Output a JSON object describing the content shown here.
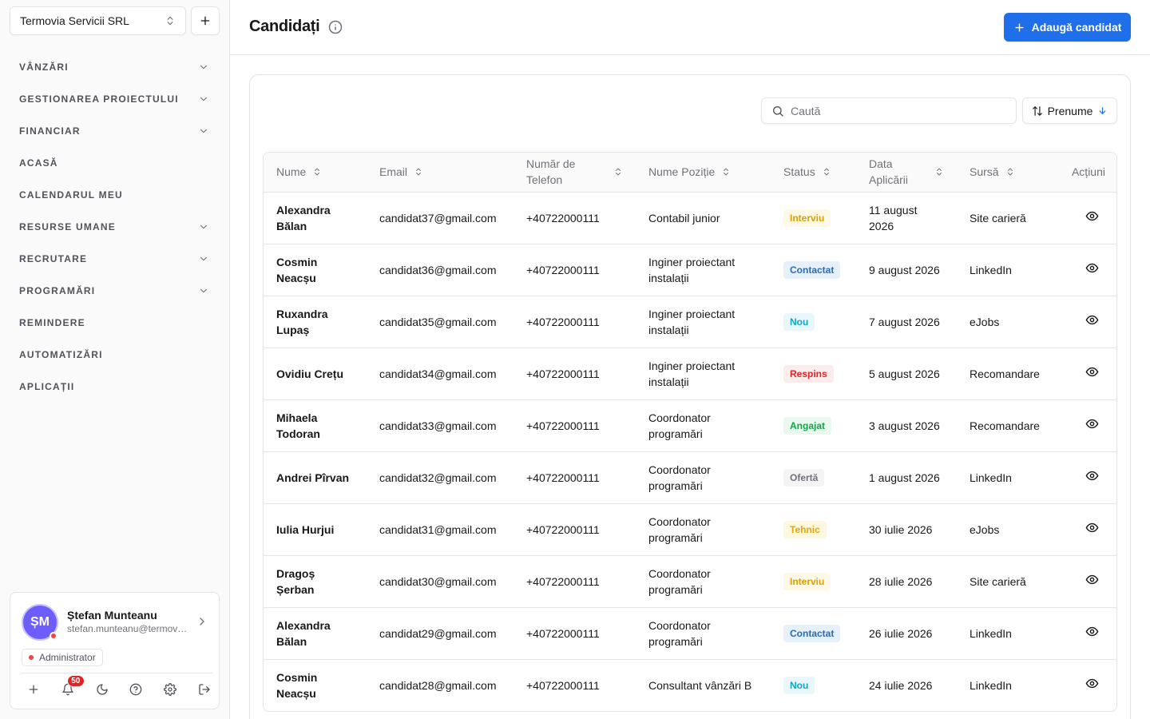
{
  "sidebar": {
    "company": "Termovia Servicii SRL",
    "nav": [
      {
        "label": "VÂNZĂRI",
        "chevron": true
      },
      {
        "label": "GESTIONAREA PROIECTULUI",
        "chevron": true
      },
      {
        "label": "FINANCIAR",
        "chevron": true
      },
      {
        "label": "ACASĂ",
        "chevron": false
      },
      {
        "label": "CALENDARUL MEU",
        "chevron": false
      },
      {
        "label": "RESURSE UMANE",
        "chevron": true
      },
      {
        "label": "RECRUTARE",
        "chevron": true
      },
      {
        "label": "PROGRAMĂRI",
        "chevron": true
      },
      {
        "label": "REMINDERE",
        "chevron": false
      },
      {
        "label": "AUTOMATIZĂRI",
        "chevron": false
      },
      {
        "label": "APLICAȚII",
        "chevron": false
      }
    ],
    "user": {
      "initials": "ȘM",
      "name": "Ștefan Munteanu",
      "email": "stefan.munteanu@termovia.ro",
      "role": "Administrator",
      "notifications": "50"
    }
  },
  "header": {
    "title": "Candidați",
    "add_label": "Adaugă candidat"
  },
  "toolbar": {
    "search_placeholder": "Caută",
    "sort_label": "Prenume"
  },
  "table": {
    "columns": {
      "name": "Nume",
      "email": "Email",
      "phone": "Număr de Telefon",
      "position": "Nume Poziție",
      "status": "Status",
      "date": "Data Aplicării",
      "source": "Sursă",
      "actions": "Acțiuni"
    },
    "rows": [
      {
        "name": "Alexandra Bălan",
        "email": "candidat37@gmail.com",
        "phone": "+40722000111",
        "position": "Contabil junior",
        "status": "Interviu",
        "status_key": "interviu",
        "date": "11 august 2026",
        "source": "Site carieră"
      },
      {
        "name": "Cosmin Neacșu",
        "email": "candidat36@gmail.com",
        "phone": "+40722000111",
        "position": "Inginer proiectant instalații",
        "status": "Contactat",
        "status_key": "contactat",
        "date": "9 august 2026",
        "source": "LinkedIn"
      },
      {
        "name": "Ruxandra Lupaș",
        "email": "candidat35@gmail.com",
        "phone": "+40722000111",
        "position": "Inginer proiectant instalații",
        "status": "Nou",
        "status_key": "nou",
        "date": "7 august 2026",
        "source": "eJobs"
      },
      {
        "name": "Ovidiu Crețu",
        "email": "candidat34@gmail.com",
        "phone": "+40722000111",
        "position": "Inginer proiectant instalații",
        "status": "Respins",
        "status_key": "respins",
        "date": "5 august 2026",
        "source": "Recomandare"
      },
      {
        "name": "Mihaela Todoran",
        "email": "candidat33@gmail.com",
        "phone": "+40722000111",
        "position": "Coordonator programări",
        "status": "Angajat",
        "status_key": "angajat",
        "date": "3 august 2026",
        "source": "Recomandare"
      },
      {
        "name": "Andrei Pîrvan",
        "email": "candidat32@gmail.com",
        "phone": "+40722000111",
        "position": "Coordonator programări",
        "status": "Ofertă",
        "status_key": "oferta",
        "date": "1 august 2026",
        "source": "LinkedIn"
      },
      {
        "name": "Iulia Hurjui",
        "email": "candidat31@gmail.com",
        "phone": "+40722000111",
        "position": "Coordonator programări",
        "status": "Tehnic",
        "status_key": "tehnic",
        "date": "30 iulie 2026",
        "source": "eJobs"
      },
      {
        "name": "Dragoș Șerban",
        "email": "candidat30@gmail.com",
        "phone": "+40722000111",
        "position": "Coordonator programări",
        "status": "Interviu",
        "status_key": "interviu",
        "date": "28 iulie 2026",
        "source": "Site carieră"
      },
      {
        "name": "Alexandra Bălan",
        "email": "candidat29@gmail.com",
        "phone": "+40722000111",
        "position": "Coordonator programări",
        "status": "Contactat",
        "status_key": "contactat",
        "date": "26 iulie 2026",
        "source": "LinkedIn"
      },
      {
        "name": "Cosmin Neacșu",
        "email": "candidat28@gmail.com",
        "phone": "+40722000111",
        "position": "Consultant vânzări B",
        "status": "Nou",
        "status_key": "nou",
        "date": "24 iulie 2026",
        "source": "LinkedIn"
      }
    ]
  }
}
